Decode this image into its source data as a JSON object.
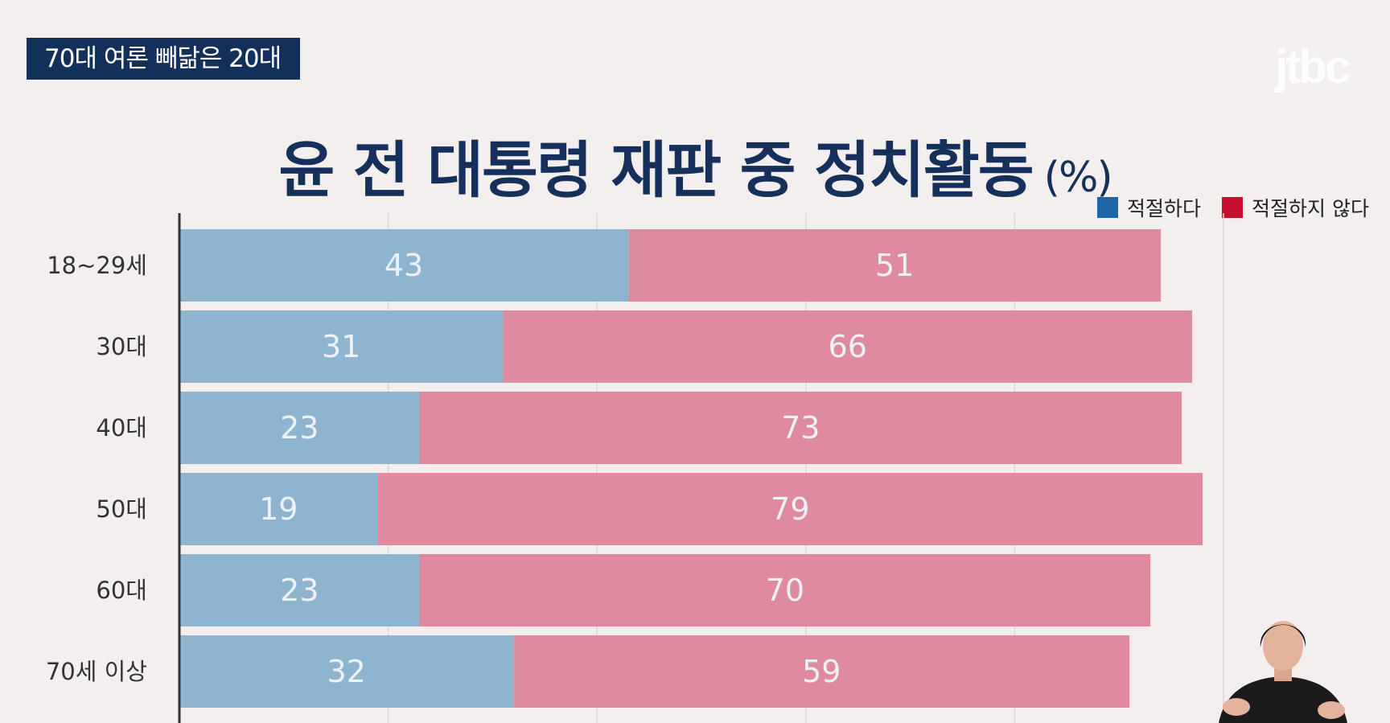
{
  "caption": "70대 여론 빼닮은 20대",
  "logo": "jtbc",
  "colors": {
    "background": "#f4efef",
    "caption_bg": "#13305a",
    "title": "#15305a",
    "appropriate_legend": "#1f66a8",
    "inappropriate_legend": "#c8102e",
    "appropriate_bar": "#8fb4d0",
    "inappropriate_bar": "#df8a9e",
    "bar_label": "#eef1f5"
  },
  "chart_data": {
    "type": "bar",
    "orientation": "horizontal",
    "stacked": true,
    "title": "윤 전 대통령 재판 중 정치활동",
    "unit": "(%)",
    "categories": [
      "18~29세",
      "30대",
      "40대",
      "50대",
      "60대",
      "70세 이상"
    ],
    "series": [
      {
        "name": "적절하다",
        "values": [
          43,
          31,
          23,
          19,
          23,
          32
        ]
      },
      {
        "name": "적절하지 않다",
        "values": [
          51,
          66,
          73,
          79,
          70,
          59
        ]
      }
    ],
    "xlim": [
      0,
      100
    ],
    "grid": true,
    "legend_position": "top-right"
  }
}
